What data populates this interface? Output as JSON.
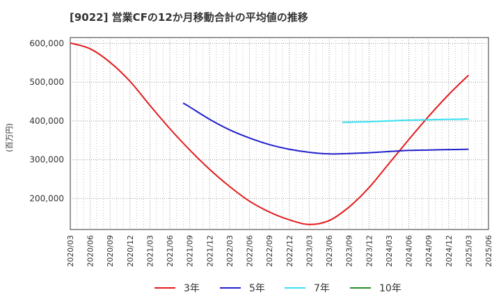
{
  "chart_data": {
    "type": "line",
    "title": "[9022]  営業CFの12か月移動合計の平均値の推移",
    "ylabel": "(百万円)",
    "xlabel": "",
    "ylim": [
      120000,
      615000
    ],
    "yticks": [
      200000,
      300000,
      400000,
      500000,
      600000
    ],
    "ytick_labels": [
      "200,000",
      "300,000",
      "400,000",
      "500,000",
      "600,000"
    ],
    "xticks": [
      "2020/03",
      "2020/06",
      "2020/09",
      "2020/12",
      "2021/03",
      "2021/06",
      "2021/09",
      "2021/12",
      "2022/03",
      "2022/06",
      "2022/09",
      "2022/12",
      "2023/03",
      "2023/06",
      "2023/09",
      "2023/12",
      "2024/03",
      "2024/06",
      "2024/09",
      "2024/12",
      "2025/03",
      "2025/06"
    ],
    "grid": true,
    "legend_position": "bottom",
    "series": [
      {
        "name": "3年",
        "color": "#e31a1c",
        "x": [
          "2020/03",
          "2020/06",
          "2020/09",
          "2020/12",
          "2021/03",
          "2021/06",
          "2021/09",
          "2021/12",
          "2022/03",
          "2022/06",
          "2022/09",
          "2022/12",
          "2023/03",
          "2023/06",
          "2023/09",
          "2023/12",
          "2024/03",
          "2024/06",
          "2024/09",
          "2024/12",
          "2025/03"
        ],
        "values": [
          601000,
          586000,
          551000,
          502000,
          440000,
          380000,
          325000,
          275000,
          231000,
          193000,
          165000,
          145000,
          133000,
          143000,
          178000,
          228000,
          290000,
          352000,
          412000,
          468000,
          518000
        ]
      },
      {
        "name": "5年",
        "color": "#1f1fcc",
        "x": [
          "2021/08",
          "2021/09",
          "2021/12",
          "2022/03",
          "2022/06",
          "2022/09",
          "2022/12",
          "2023/03",
          "2023/06",
          "2023/09",
          "2023/12",
          "2024/03",
          "2024/06",
          "2024/09",
          "2024/12",
          "2025/03"
        ],
        "values": [
          446000,
          436000,
          404000,
          377000,
          356000,
          339000,
          327000,
          319000,
          315000,
          316000,
          318000,
          321000,
          324000,
          325000,
          326000,
          327000
        ]
      },
      {
        "name": "7年",
        "color": "#33e0f0",
        "x": [
          "2023/08",
          "2023/09",
          "2023/12",
          "2024/03",
          "2024/06",
          "2024/09",
          "2024/12",
          "2025/03"
        ],
        "values": [
          396000,
          397000,
          398000,
          400000,
          402000,
          403000,
          404000,
          405000
        ]
      },
      {
        "name": "10年",
        "color": "#2a8a2a",
        "x": [],
        "values": []
      }
    ]
  }
}
